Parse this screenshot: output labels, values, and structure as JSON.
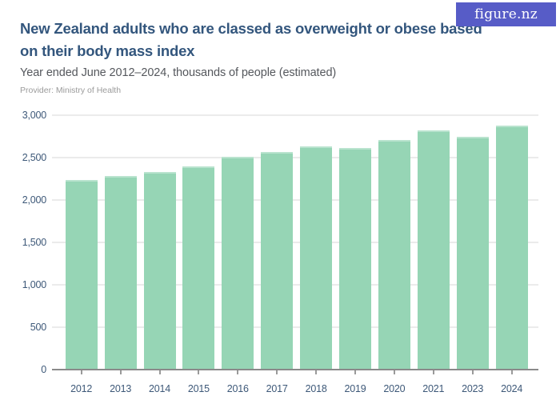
{
  "header": {
    "logo_text": "figure.nz",
    "title_lines": [
      "New Zealand adults who are classed as overweight or obese based",
      "on their body mass index"
    ],
    "subtitle": "Year ended June 2012–2024, thousands of people (estimated)",
    "provider": "Provider: Ministry of Health"
  },
  "colors": {
    "background": "#ffffff",
    "bar_fill": "#96d5b5",
    "bar_top_edge": "#b9e3ce",
    "title_text": "#33567d",
    "subtitle_text": "#55585d",
    "provider_text": "#9b9b9b",
    "axis_label_text": "#3d5878",
    "gridline": "#ebebeb",
    "axis_line": "#8a8a8a",
    "tick": "#9a9a9a",
    "logo_bg": "#575cc7",
    "logo_text_color": "#ffffff"
  },
  "chart_data": {
    "type": "bar",
    "title": "New Zealand adults who are classed as overweight or obese based on their body mass index",
    "subtitle": "Year ended June 2012–2024, thousands of people (estimated)",
    "categories": [
      "2012",
      "2013",
      "2014",
      "2015",
      "2016",
      "2017",
      "2018",
      "2019",
      "2020",
      "2021",
      "2023",
      "2024"
    ],
    "values": [
      2240,
      2280,
      2330,
      2400,
      2510,
      2570,
      2630,
      2610,
      2710,
      2820,
      2750,
      2880
    ],
    "unit": "thousands of people",
    "xlabel": "",
    "ylabel": "thousands of people",
    "ylim": [
      0,
      3000
    ],
    "y_tick_values": [
      0,
      500,
      1000,
      1500,
      2000,
      2500,
      3000
    ],
    "y_tick_labels": [
      "0",
      "500",
      "1,000",
      "1,500",
      "2,000",
      "2,500",
      "3,000"
    ],
    "grid": true,
    "legend": false
  }
}
